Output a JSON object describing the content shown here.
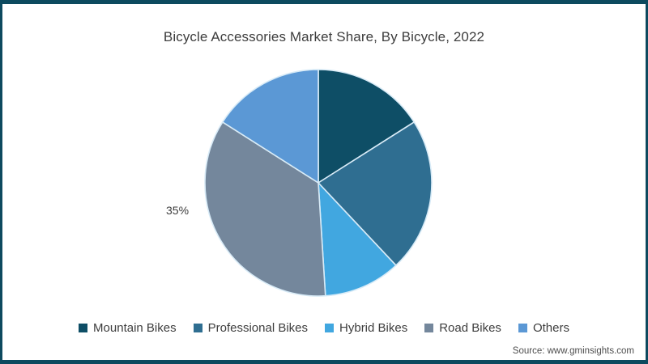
{
  "page": {
    "background": "#ffffff",
    "border_color": "#0d4a5f"
  },
  "chart": {
    "title": "Bicycle Accessories Market Share, By Bicycle, 2022",
    "source": "Source: www.gminsights.com",
    "visible_label": "35%"
  },
  "chart_data": {
    "type": "pie",
    "title": "Bicycle Accessories Market Share, By Bicycle, 2022",
    "unit": "%",
    "start_angle_deg": 0,
    "direction": "clockwise",
    "legend_position": "bottom",
    "separator_color": "#d8ebf7",
    "slices": [
      {
        "label": "Mountain Bikes",
        "value": 16,
        "color": "#0e4e66"
      },
      {
        "label": "Professional Bikes",
        "value": 22,
        "color": "#2f6e91"
      },
      {
        "label": "Hybrid Bikes",
        "value": 11,
        "color": "#41a7e0"
      },
      {
        "label": "Road Bikes",
        "value": 35,
        "color": "#74879c",
        "data_label": "35%"
      },
      {
        "label": "Others",
        "value": 16,
        "color": "#5b98d5"
      }
    ],
    "annotations": [
      {
        "text": "35%",
        "slice": "Road Bikes",
        "position": "outside-left"
      }
    ]
  }
}
